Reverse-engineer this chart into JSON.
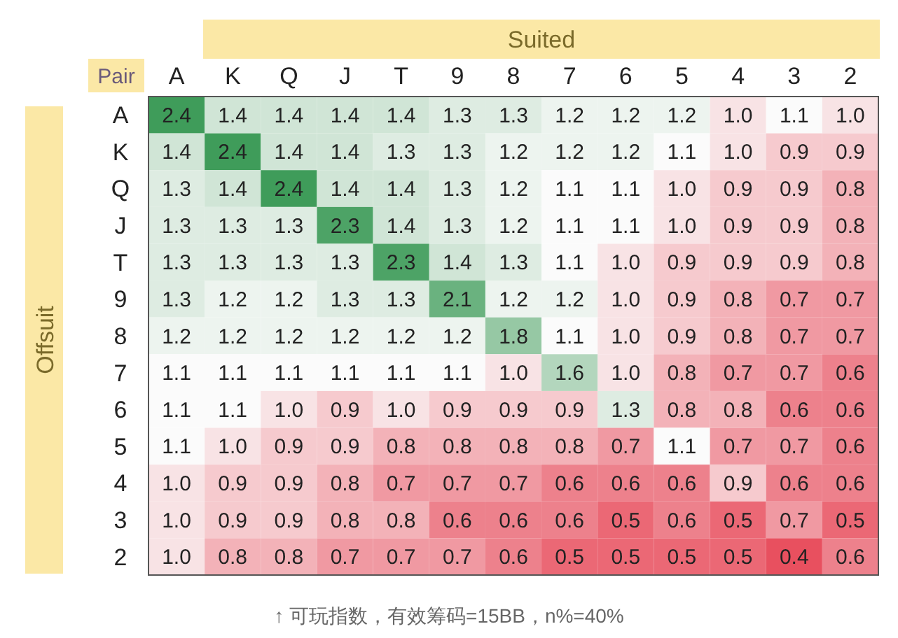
{
  "chart_data": {
    "type": "heatmap",
    "cell_labels": [
      [
        "2.4",
        "1.4",
        "1.4",
        "1.4",
        "1.4",
        "1.3",
        "1.3",
        "1.2",
        "1.2",
        "1.2",
        "1.0",
        "1.1",
        "1.0"
      ],
      [
        "1.4",
        "2.4",
        "1.4",
        "1.4",
        "1.3",
        "1.3",
        "1.2",
        "1.2",
        "1.2",
        "1.1",
        "1.0",
        "0.9",
        "0.9"
      ],
      [
        "1.3",
        "1.4",
        "2.4",
        "1.4",
        "1.4",
        "1.3",
        "1.2",
        "1.1",
        "1.1",
        "1.0",
        "0.9",
        "0.9",
        "0.8"
      ],
      [
        "1.3",
        "1.3",
        "1.3",
        "2.3",
        "1.4",
        "1.3",
        "1.2",
        "1.1",
        "1.1",
        "1.0",
        "0.9",
        "0.9",
        "0.8"
      ],
      [
        "1.3",
        "1.3",
        "1.3",
        "1.3",
        "2.3",
        "1.4",
        "1.3",
        "1.1",
        "1.0",
        "0.9",
        "0.9",
        "0.9",
        "0.8"
      ],
      [
        "1.3",
        "1.2",
        "1.2",
        "1.3",
        "1.3",
        "2.1",
        "1.2",
        "1.2",
        "1.0",
        "0.9",
        "0.8",
        "0.7",
        "0.7"
      ],
      [
        "1.2",
        "1.2",
        "1.2",
        "1.2",
        "1.2",
        "1.2",
        "1.8",
        "1.1",
        "1.0",
        "0.9",
        "0.8",
        "0.7",
        "0.7"
      ],
      [
        "1.1",
        "1.1",
        "1.1",
        "1.1",
        "1.1",
        "1.1",
        "1.0",
        "1.6",
        "1.0",
        "0.8",
        "0.7",
        "0.7",
        "0.6"
      ],
      [
        "1.1",
        "1.1",
        "1.0",
        "0.9",
        "1.0",
        "0.9",
        "0.9",
        "0.9",
        "1.3",
        "0.8",
        "0.8",
        "0.6",
        "0.6"
      ],
      [
        "1.1",
        "1.0",
        "0.9",
        "0.9",
        "0.8",
        "0.8",
        "0.8",
        "0.8",
        "0.7",
        "1.1",
        "0.7",
        "0.7",
        "0.6"
      ],
      [
        "1.0",
        "0.9",
        "0.9",
        "0.8",
        "0.7",
        "0.7",
        "0.7",
        "0.6",
        "0.6",
        "0.6",
        "0.9",
        "0.6",
        "0.6"
      ],
      [
        "1.0",
        "0.9",
        "0.9",
        "0.8",
        "0.8",
        "0.6",
        "0.6",
        "0.6",
        "0.5",
        "0.6",
        "0.5",
        "0.7",
        "0.5"
      ],
      [
        "1.0",
        "0.8",
        "0.8",
        "0.7",
        "0.7",
        "0.7",
        "0.6",
        "0.5",
        "0.5",
        "0.5",
        "0.5",
        "0.4",
        "0.6"
      ]
    ],
    "xlabel": "Suited",
    "ylabel": "Offsuit",
    "annotations": [
      "Pair",
      "↑ 可玩指数，有效筹码=15BB，n%=40%"
    ],
    "categories": [
      "A",
      "K",
      "Q",
      "J",
      "T",
      "9",
      "8",
      "7",
      "6",
      "5",
      "4",
      "3",
      "2"
    ],
    "y_categories": [
      "A",
      "K",
      "Q",
      "J",
      "T",
      "9",
      "8",
      "7",
      "6",
      "5",
      "4",
      "3",
      "2"
    ],
    "cells": [
      [
        2.4,
        1.4,
        1.4,
        1.4,
        1.4,
        1.3,
        1.3,
        1.2,
        1.2,
        1.2,
        1.0,
        1.1,
        1.0
      ],
      [
        1.4,
        2.4,
        1.4,
        1.4,
        1.3,
        1.3,
        1.2,
        1.2,
        1.2,
        1.1,
        1.0,
        0.9,
        0.9
      ],
      [
        1.3,
        1.4,
        2.4,
        1.4,
        1.4,
        1.3,
        1.2,
        1.1,
        1.1,
        1.0,
        0.9,
        0.9,
        0.8
      ],
      [
        1.3,
        1.3,
        1.3,
        2.3,
        1.4,
        1.3,
        1.2,
        1.1,
        1.1,
        1.0,
        0.9,
        0.9,
        0.8
      ],
      [
        1.3,
        1.3,
        1.3,
        1.3,
        2.3,
        1.4,
        1.3,
        1.1,
        1.0,
        0.9,
        0.9,
        0.9,
        0.8
      ],
      [
        1.3,
        1.2,
        1.2,
        1.3,
        1.3,
        2.1,
        1.2,
        1.2,
        1.0,
        0.9,
        0.8,
        0.7,
        0.7
      ],
      [
        1.2,
        1.2,
        1.2,
        1.2,
        1.2,
        1.2,
        1.8,
        1.1,
        1.0,
        0.9,
        0.8,
        0.7,
        0.7
      ],
      [
        1.1,
        1.1,
        1.1,
        1.1,
        1.1,
        1.1,
        1.0,
        1.6,
        1.0,
        0.8,
        0.7,
        0.7,
        0.6
      ],
      [
        1.1,
        1.1,
        1.0,
        0.9,
        1.0,
        0.9,
        0.9,
        0.9,
        1.3,
        0.8,
        0.8,
        0.6,
        0.6
      ],
      [
        1.1,
        1.0,
        0.9,
        0.9,
        0.8,
        0.8,
        0.8,
        0.8,
        0.7,
        1.1,
        0.7,
        0.7,
        0.6
      ],
      [
        1.0,
        0.9,
        0.9,
        0.8,
        0.7,
        0.7,
        0.7,
        0.6,
        0.6,
        0.6,
        0.9,
        0.6,
        0.6
      ],
      [
        1.0,
        0.9,
        0.9,
        0.8,
        0.8,
        0.6,
        0.6,
        0.6,
        0.5,
        0.6,
        0.5,
        0.7,
        0.5
      ],
      [
        1.0,
        0.8,
        0.8,
        0.7,
        0.7,
        0.7,
        0.6,
        0.5,
        0.5,
        0.5,
        0.5,
        0.4,
        0.6
      ]
    ]
  }
}
